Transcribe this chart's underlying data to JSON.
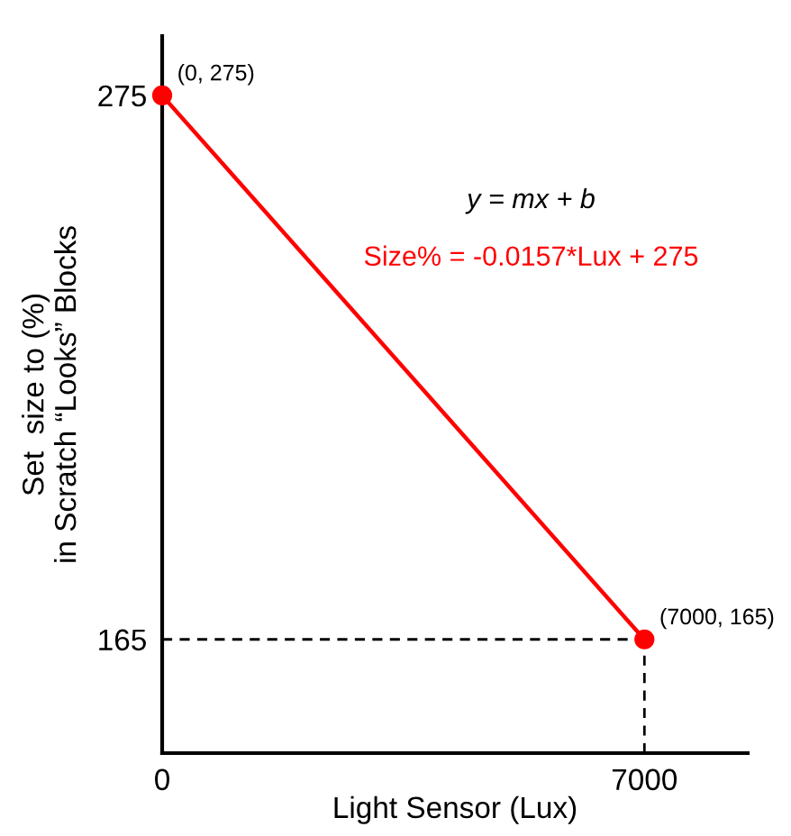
{
  "chart_data": {
    "type": "line",
    "xlabel": "Light Sensor (Lux)",
    "ylabel": "Set  size to (%)\nin Scratch “Looks” Blocks",
    "series": [
      {
        "values": [
          275,
          165
        ],
        "color": "#ff0000",
        "marker": "circle",
        "line_style": "solid"
      },
      {
        "values": [
          165,
          165
        ],
        "color": "#000000",
        "marker": "none",
        "line_style": "dashed"
      },
      {
        "x": [
          7000,
          7000
        ],
        "values": [
          142,
          165
        ],
        "color": "#000000",
        "marker": "none",
        "line_style": "dashed"
      }
    ],
    "x": [
      0,
      7000
    ],
    "xlim": [
      0,
      8500
    ],
    "ylim": [
      142,
      287
    ],
    "xticks": [
      0,
      7000
    ],
    "yticks": [
      165,
      275
    ],
    "grid": false,
    "legend": false,
    "annotations": [
      {
        "text": "(0, 275)",
        "x": 0,
        "y": 275
      },
      {
        "text": "(7000, 165)",
        "x": 7000,
        "y": 165
      },
      "y = mx + b",
      "Size% = -0.0157*Lux + 275"
    ]
  }
}
